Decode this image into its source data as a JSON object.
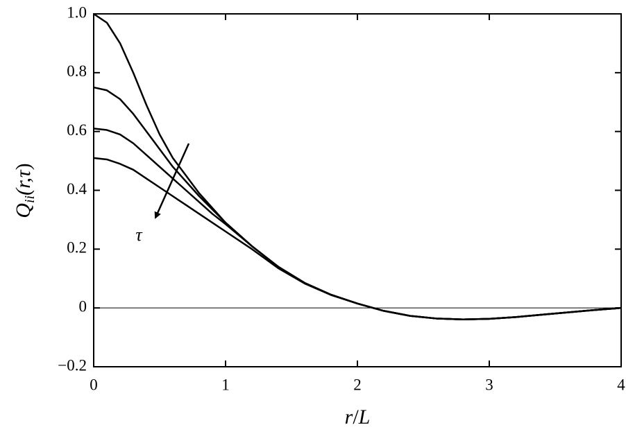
{
  "chart_data": {
    "type": "line",
    "xlabel": [
      "r",
      "/",
      "L"
    ],
    "ylabel": [
      "Q",
      "ii",
      "(r,",
      "τ",
      ")"
    ],
    "annotation": "τ",
    "x": [
      0,
      0.1,
      0.2,
      0.3,
      0.4,
      0.5,
      0.6,
      0.7,
      0.8,
      0.9,
      1.0,
      1.2,
      1.4,
      1.6,
      1.8,
      2.0,
      2.2,
      2.4,
      2.6,
      2.8,
      3.0,
      3.2,
      3.4,
      3.6,
      3.8,
      4.0
    ],
    "series": [
      {
        "color": "#000000",
        "values": [
          1.0,
          0.97,
          0.9,
          0.8,
          0.69,
          0.59,
          0.51,
          0.45,
          0.39,
          0.34,
          0.29,
          0.21,
          0.14,
          0.085,
          0.045,
          0.015,
          -0.01,
          -0.027,
          -0.036,
          -0.039,
          -0.037,
          -0.031,
          -0.023,
          -0.015,
          -0.007,
          0
        ]
      },
      {
        "color": "#000000",
        "values": [
          0.75,
          0.74,
          0.71,
          0.66,
          0.6,
          0.54,
          0.48,
          0.43,
          0.38,
          0.335,
          0.29,
          0.21,
          0.14,
          0.085,
          0.045,
          0.015,
          -0.01,
          -0.027,
          -0.036,
          -0.039,
          -0.037,
          -0.031,
          -0.023,
          -0.015,
          -0.007,
          0
        ]
      },
      {
        "color": "#000000",
        "values": [
          0.61,
          0.605,
          0.59,
          0.56,
          0.52,
          0.48,
          0.44,
          0.4,
          0.36,
          0.32,
          0.285,
          0.21,
          0.14,
          0.085,
          0.045,
          0.015,
          -0.01,
          -0.027,
          -0.036,
          -0.039,
          -0.037,
          -0.031,
          -0.023,
          -0.015,
          -0.007,
          0
        ]
      },
      {
        "color": "#000000",
        "values": [
          0.51,
          0.505,
          0.49,
          0.47,
          0.44,
          0.41,
          0.38,
          0.35,
          0.32,
          0.29,
          0.26,
          0.2,
          0.135,
          0.083,
          0.044,
          0.015,
          -0.01,
          -0.027,
          -0.036,
          -0.039,
          -0.037,
          -0.031,
          -0.023,
          -0.015,
          -0.007,
          0
        ]
      }
    ],
    "xlim": [
      0,
      4
    ],
    "xticks": [
      0,
      1,
      2,
      3,
      4
    ],
    "ylim": [
      -0.2,
      1.0
    ],
    "yticks": [
      {
        "value": -0.2,
        "label": "−0.2"
      },
      0,
      0.2,
      0.4,
      0.6,
      0.8,
      {
        "value": 1.0,
        "label": "1.0"
      }
    ],
    "zero_line": true
  }
}
